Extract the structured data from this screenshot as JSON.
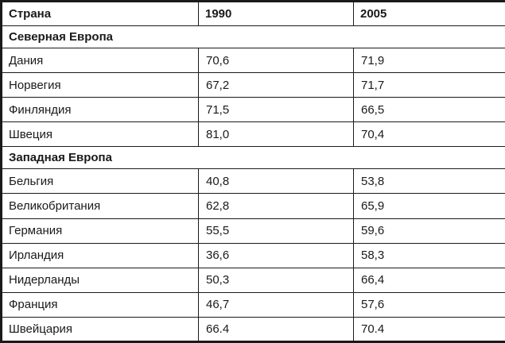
{
  "table": {
    "header": {
      "country": "Страна",
      "year1": "1990",
      "year2": "2005"
    },
    "sections": [
      {
        "title": "Северная Европа",
        "rows": [
          {
            "country": "Дания",
            "y1990": "70,6",
            "y2005": "71,9"
          },
          {
            "country": "Норвегия",
            "y1990": "67,2",
            "y2005": "71,7"
          },
          {
            "country": "Финляндия",
            "y1990": "71,5",
            "y2005": "66,5"
          },
          {
            "country": "Швеция",
            "y1990": "81,0",
            "y2005": "70,4"
          }
        ]
      },
      {
        "title": "Западная Европа",
        "rows": [
          {
            "country": "Бельгия",
            "y1990": "40,8",
            "y2005": "53,8"
          },
          {
            "country": "Великобритания",
            "y1990": "62,8",
            "y2005": "65,9"
          },
          {
            "country": "Германия",
            "y1990": "55,5",
            "y2005": "59,6"
          },
          {
            "country": "Ирландия",
            "y1990": "36,6",
            "y2005": "58,3"
          },
          {
            "country": "Нидерланды",
            "y1990": "50,3",
            "y2005": "66,4"
          },
          {
            "country": "Франция",
            "y1990": "46,7",
            "y2005": "57,6"
          },
          {
            "country": "Швейцария",
            "y1990": "66.4",
            "y2005": "70.4"
          }
        ]
      }
    ]
  }
}
